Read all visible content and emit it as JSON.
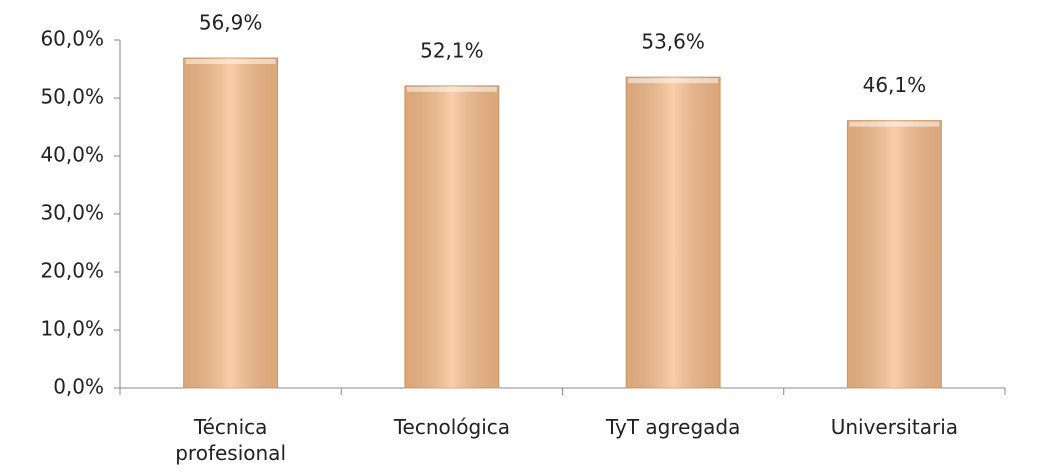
{
  "chart_data": {
    "type": "bar",
    "categories": [
      "Técnica profesional",
      "Tecnológica",
      "TyT agregada",
      "Universitaria"
    ],
    "values": [
      56.9,
      52.1,
      53.6,
      46.1
    ],
    "value_labels": [
      "56,9%",
      "52,1%",
      "53,6%",
      "46,1%"
    ],
    "color": "#f9be8c",
    "ylim": [
      0,
      60
    ],
    "yticks": [
      {
        "value": 0,
        "label": "0,0%"
      },
      {
        "value": 10,
        "label": "10,0%"
      },
      {
        "value": 20,
        "label": "20,0%"
      },
      {
        "value": 30,
        "label": "30,0%"
      },
      {
        "value": 40,
        "label": "40,0%"
      },
      {
        "value": 50,
        "label": "50,0%"
      },
      {
        "value": 60,
        "label": "60,0%"
      }
    ]
  }
}
